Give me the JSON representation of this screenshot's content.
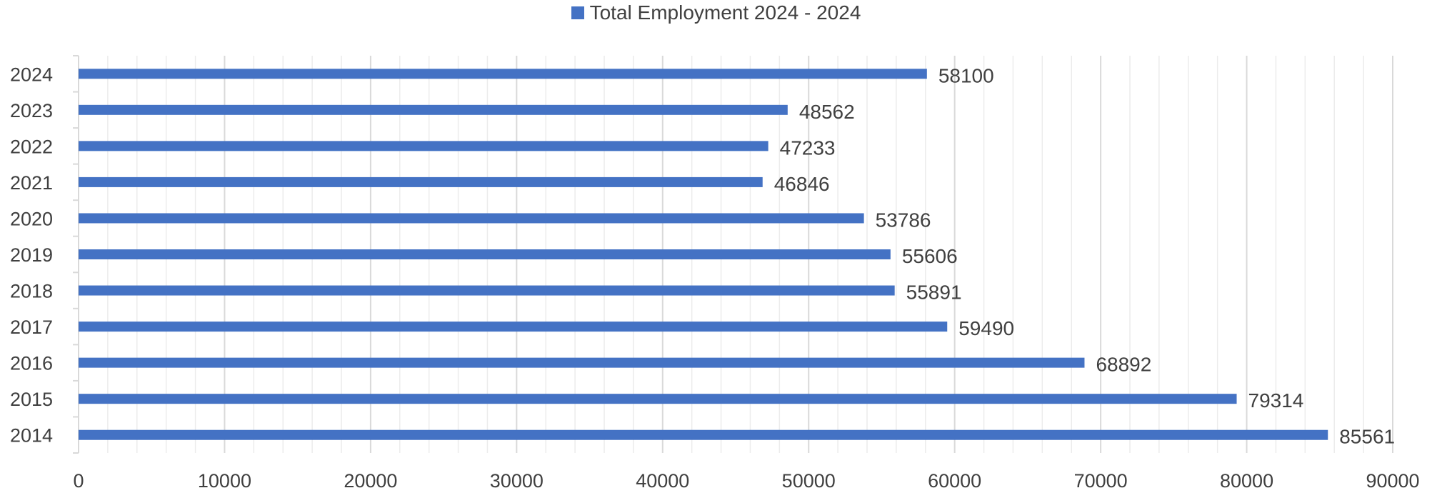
{
  "chart_data": {
    "type": "bar",
    "orientation": "horizontal",
    "legend": {
      "position": "top",
      "entries": [
        "Total Employment 2024 - 2024"
      ]
    },
    "series": [
      {
        "name": "Total Employment 2024 - 2024",
        "color": "#4472C4",
        "values": [
          85561,
          79314,
          68892,
          59490,
          55891,
          55606,
          53786,
          46846,
          47233,
          48562,
          58100
        ]
      }
    ],
    "categories": [
      "2014",
      "2015",
      "2016",
      "2017",
      "2018",
      "2019",
      "2020",
      "2021",
      "2022",
      "2023",
      "2024"
    ],
    "xlim": [
      0,
      90000
    ],
    "x_ticks": [
      0,
      10000,
      20000,
      30000,
      40000,
      50000,
      60000,
      70000,
      80000,
      90000
    ],
    "grid": {
      "major": true,
      "minor": true
    },
    "data_labels": true,
    "xlabel": "",
    "ylabel": ""
  },
  "colors": {
    "bar": "#4472C4",
    "major_grid": "#d9d9d9",
    "minor_grid": "#ececec",
    "axis_text": "#404040"
  }
}
